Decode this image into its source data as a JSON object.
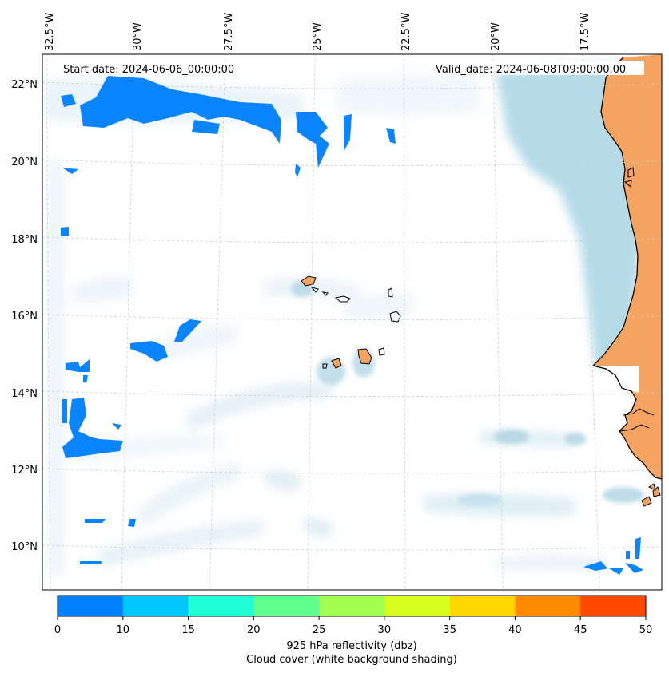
{
  "map": {
    "start_date_label": "Start date: 2024-06-06_00:00:00",
    "valid_date_label": "Valid_date: 2024-06-08T09:00:00.00",
    "lon_labels": [
      "32.5°W",
      "30°W",
      "27.5°W",
      "25°W",
      "22.5°W",
      "20°W",
      "17.5°W"
    ],
    "lat_labels": [
      "22°N",
      "20°N",
      "18°N",
      "16°N",
      "14°N",
      "12°N",
      "10°N"
    ],
    "colorbar": {
      "title_line1": "925 hPa reflectivity (dbz)",
      "title_line2": "Cloud cover (white background shading)",
      "ticks": [
        "0",
        "10",
        "15",
        "20",
        "25",
        "30",
        "35",
        "40",
        "45",
        "50"
      ],
      "colors": [
        "#0080ff",
        "#00c8ff",
        "#20ffd8",
        "#60ff90",
        "#a0ff50",
        "#d8ff20",
        "#ffd800",
        "#ff8c00",
        "#ff4a00"
      ]
    },
    "colors": {
      "land": "#f4a460",
      "cloud": "#add8e6",
      "reflectivity_low": "#0a84ff",
      "gridline": "#bbbbbb"
    }
  }
}
